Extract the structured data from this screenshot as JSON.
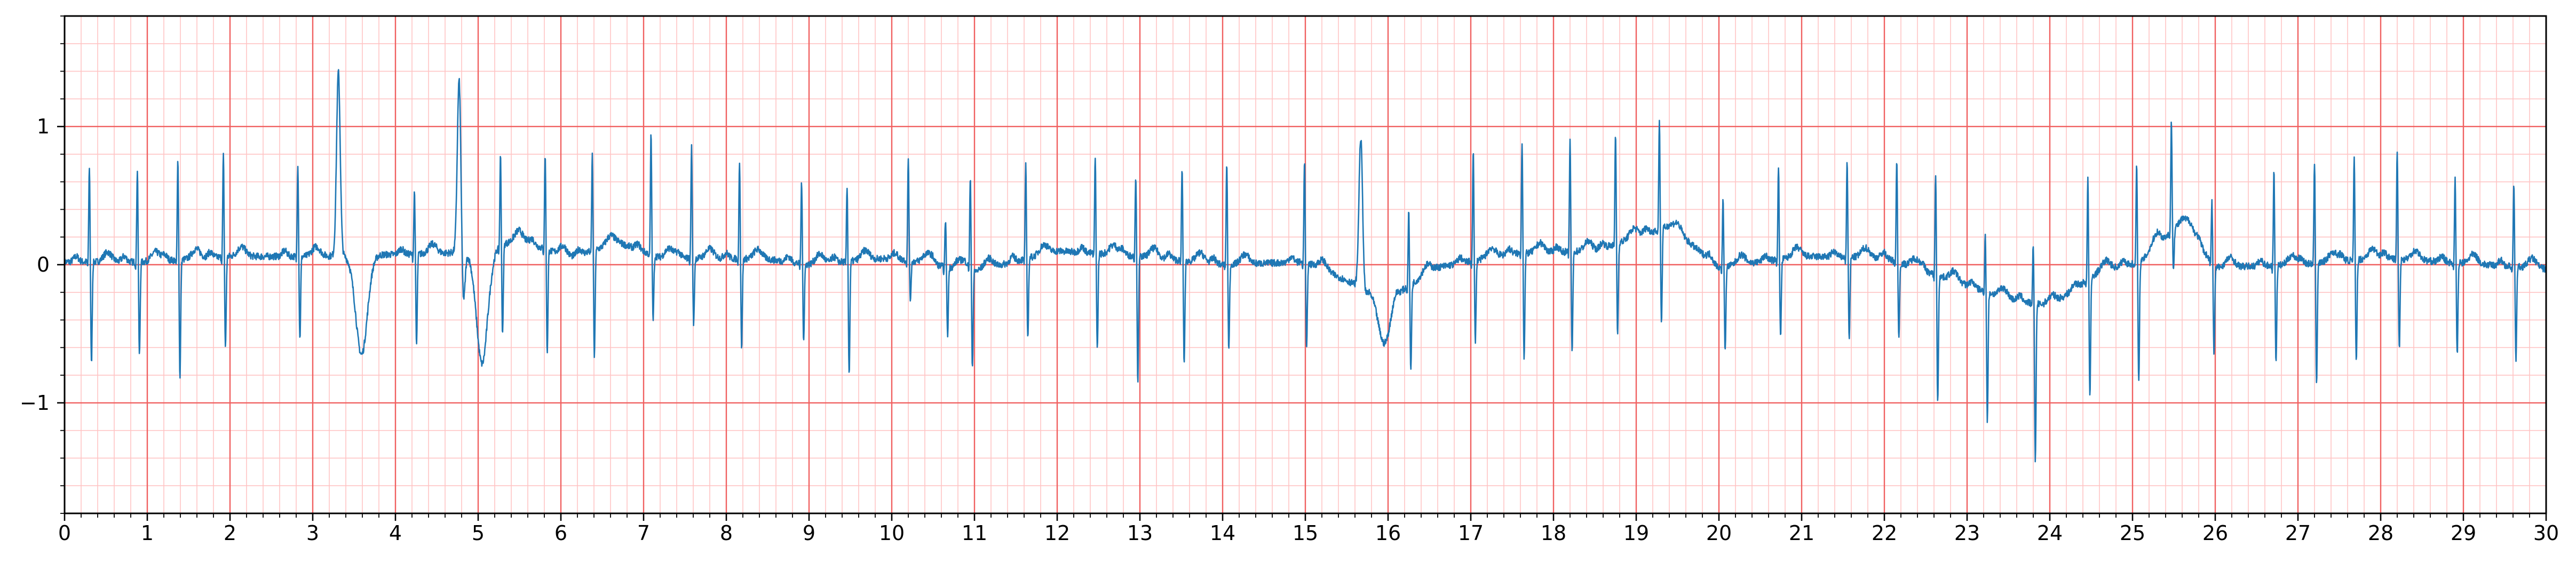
{
  "chart_data": {
    "type": "line",
    "title": "",
    "xlabel": "",
    "ylabel": "",
    "xlim": [
      0,
      30
    ],
    "ylim": [
      -1.8,
      1.8
    ],
    "grid": {
      "major_x_step": 1,
      "major_y_step": 1,
      "minor_x_step": 0.2,
      "minor_y_step": 0.2,
      "visible": true
    },
    "x_tick_labels": [
      "0",
      "1",
      "2",
      "3",
      "4",
      "5",
      "6",
      "7",
      "8",
      "9",
      "10",
      "11",
      "12",
      "13",
      "14",
      "15",
      "16",
      "17",
      "18",
      "19",
      "20",
      "21",
      "22",
      "23",
      "24",
      "25",
      "26",
      "27",
      "28",
      "29",
      "30"
    ],
    "y_tick_values": [
      -1,
      0,
      1
    ],
    "y_tick_labels": [
      "−1",
      "0",
      "1"
    ],
    "colors": {
      "trace": "#1f77b4",
      "major_grid": "#f06060",
      "minor_grid": "#ffc4c4",
      "axis": "#000000"
    },
    "series": [
      {
        "name": "",
        "beats": [
          {
            "t": 0.3,
            "r": 0.7,
            "s": -0.74
          },
          {
            "t": 0.88,
            "r": 0.68,
            "s": -0.68
          },
          {
            "t": 1.37,
            "r": 0.74,
            "s": -0.85
          },
          {
            "t": 1.92,
            "r": 0.74,
            "s": -0.66
          },
          {
            "t": 2.82,
            "r": 0.68,
            "s": -0.6
          },
          {
            "t": 3.31,
            "r": 1.33,
            "s": 0.0,
            "wide": true,
            "after": -0.72
          },
          {
            "t": 4.23,
            "r": 0.46,
            "s": -0.66
          },
          {
            "t": 4.77,
            "r": 1.26,
            "s": -0.4,
            "wide": true,
            "after": -0.83
          },
          {
            "t": 5.27,
            "r": 0.66,
            "s": -0.66
          },
          {
            "t": 5.81,
            "r": 0.7,
            "s": -0.74
          },
          {
            "t": 6.38,
            "r": 0.7,
            "s": -0.78
          },
          {
            "t": 7.09,
            "r": 0.88,
            "s": -0.47
          },
          {
            "t": 7.58,
            "r": 0.82,
            "s": -0.48
          },
          {
            "t": 8.16,
            "r": 0.72,
            "s": -0.64
          },
          {
            "t": 8.91,
            "r": 0.6,
            "s": -0.55
          },
          {
            "t": 9.46,
            "r": 0.55,
            "s": -0.82
          },
          {
            "t": 10.2,
            "r": 0.75,
            "s": -0.28
          },
          {
            "t": 10.65,
            "r": 0.35,
            "s": -0.5
          },
          {
            "t": 10.95,
            "r": 0.66,
            "s": -0.7
          },
          {
            "t": 11.62,
            "r": 0.68,
            "s": -0.58
          },
          {
            "t": 12.46,
            "r": 0.7,
            "s": -0.7
          },
          {
            "t": 12.95,
            "r": 0.6,
            "s": -0.9
          },
          {
            "t": 13.51,
            "r": 0.68,
            "s": -0.74
          },
          {
            "t": 14.05,
            "r": 0.75,
            "s": -0.62
          },
          {
            "t": 14.99,
            "r": 0.75,
            "s": -0.64
          },
          {
            "t": 15.67,
            "r": 1.08,
            "s": -0.05,
            "wide": true,
            "after": -0.33
          },
          {
            "t": 16.25,
            "r": 0.55,
            "s": -0.62
          },
          {
            "t": 17.03,
            "r": 0.8,
            "s": -0.58
          },
          {
            "t": 17.62,
            "r": 0.82,
            "s": -0.76
          },
          {
            "t": 18.2,
            "r": 0.8,
            "s": -0.73
          },
          {
            "t": 18.75,
            "r": 0.8,
            "s": -0.66
          },
          {
            "t": 19.28,
            "r": 0.8,
            "s": -0.68
          },
          {
            "t": 20.05,
            "r": 0.49,
            "s": -0.62
          },
          {
            "t": 20.72,
            "r": 0.68,
            "s": -0.56
          },
          {
            "t": 21.55,
            "r": 0.7,
            "s": -0.6
          },
          {
            "t": 22.15,
            "r": 0.75,
            "s": -0.55
          },
          {
            "t": 22.62,
            "r": 0.75,
            "s": -0.93
          },
          {
            "t": 23.22,
            "r": 0.42,
            "s": -0.93
          },
          {
            "t": 23.8,
            "r": 0.43,
            "s": -1.15
          },
          {
            "t": 24.46,
            "r": 0.74,
            "s": -0.86
          },
          {
            "t": 25.05,
            "r": 0.73,
            "s": -0.88
          },
          {
            "t": 25.47,
            "r": 0.8,
            "s": -0.28
          },
          {
            "t": 25.96,
            "r": 0.45,
            "s": -0.64
          },
          {
            "t": 26.71,
            "r": 0.68,
            "s": -0.7
          },
          {
            "t": 27.2,
            "r": 0.74,
            "s": -0.87
          },
          {
            "t": 27.68,
            "r": 0.74,
            "s": -0.75
          },
          {
            "t": 28.2,
            "r": 0.78,
            "s": -0.65
          },
          {
            "t": 28.9,
            "r": 0.61,
            "s": -0.67
          },
          {
            "t": 29.61,
            "r": 0.6,
            "s": -0.67
          }
        ],
        "baseline_wander": [
          [
            0,
            0.02
          ],
          [
            1,
            0.02
          ],
          [
            2,
            0.06
          ],
          [
            3,
            0.06
          ],
          [
            3.6,
            0.07
          ],
          [
            4.5,
            0.08
          ],
          [
            5,
            0.1
          ],
          [
            5.5,
            0.18
          ],
          [
            6.1,
            0.05
          ],
          [
            6.7,
            0.16
          ],
          [
            7.2,
            0.05
          ],
          [
            8.5,
            0.04
          ],
          [
            9,
            0.0
          ],
          [
            10,
            0.05
          ],
          [
            11,
            -0.05
          ],
          [
            12,
            0.1
          ],
          [
            13,
            0.06
          ],
          [
            14,
            0.0
          ],
          [
            15,
            0.02
          ],
          [
            16,
            -0.25
          ],
          [
            16.6,
            -0.02
          ],
          [
            17.5,
            0.08
          ],
          [
            18.5,
            0.1
          ],
          [
            19.4,
            0.28
          ],
          [
            20,
            -0.02
          ],
          [
            21,
            0.06
          ],
          [
            22,
            0.05
          ],
          [
            23,
            -0.15
          ],
          [
            23.5,
            -0.25
          ],
          [
            24,
            -0.3
          ],
          [
            24.6,
            -0.05
          ],
          [
            25.1,
            0.02
          ],
          [
            25.6,
            0.32
          ],
          [
            26,
            -0.02
          ],
          [
            27,
            0.0
          ],
          [
            28,
            0.05
          ],
          [
            29,
            0.01
          ],
          [
            30,
            -0.03
          ]
        ]
      }
    ]
  }
}
